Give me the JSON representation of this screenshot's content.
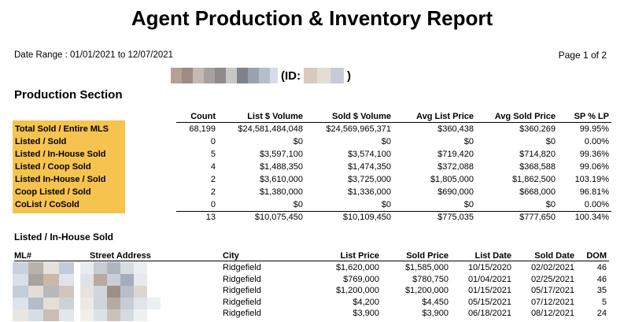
{
  "title": "Agent Production & Inventory Report",
  "date_range": "Date Range :   01/01/2021 to 12/07/2021",
  "page": "Page 1 of 2",
  "agent": {
    "id_label": "(ID:",
    "id_close": ")"
  },
  "production": {
    "section_title": "Production Section",
    "headers": [
      "Count",
      "List $ Volume",
      "Sold $ Volume",
      "Avg List Price",
      "Avg Sold Price",
      "SP % LP"
    ],
    "rows": [
      {
        "label": "Total Sold / Entire MLS",
        "values": [
          "68,199",
          "$24,581,484,048",
          "$24,569,965,371",
          "$360,438",
          "$360,269",
          "99.95%"
        ]
      },
      {
        "label": "Listed / Sold",
        "values": [
          "0",
          "$0",
          "$0",
          "$0",
          "$0",
          "0.00%"
        ]
      },
      {
        "label": "Listed / In-House Sold",
        "values": [
          "5",
          "$3,597,100",
          "$3,574,100",
          "$719,420",
          "$714,820",
          "99.36%"
        ]
      },
      {
        "label": "Listed / Coop Sold",
        "values": [
          "4",
          "$1,488,350",
          "$1,474,350",
          "$372,088",
          "$368,588",
          "99.06%"
        ]
      },
      {
        "label": "Listed In-House / Sold",
        "values": [
          "2",
          "$3,610,000",
          "$3,725,000",
          "$1,805,000",
          "$1,862,500",
          "103.19%"
        ]
      },
      {
        "label": "Coop Listed / Sold",
        "values": [
          "2",
          "$1,380,000",
          "$1,336,000",
          "$690,000",
          "$668,000",
          "96.81%"
        ]
      },
      {
        "label": "CoList / CoSold",
        "values": [
          "0",
          "$0",
          "$0",
          "$0",
          "$0",
          "0.00%"
        ]
      }
    ],
    "totals": [
      "13",
      "$10,075,450",
      "$10,109,450",
      "$775,035",
      "$777,650",
      "100.34%"
    ]
  },
  "listings": {
    "title": "Listed / In-House Sold",
    "headers": [
      "ML#",
      "Street Address",
      "City",
      "List Price",
      "Sold Price",
      "List Date",
      "Sold Date",
      "DOM"
    ],
    "rows": [
      {
        "city": "Ridgefield",
        "list_price": "$1,620,000",
        "sold_price": "$1,585,000",
        "list_date": "10/15/2020",
        "sold_date": "02/02/2021",
        "dom": "46"
      },
      {
        "city": "Ridgefield",
        "list_price": "$769,000",
        "sold_price": "$780,750",
        "list_date": "01/04/2021",
        "sold_date": "02/25/2021",
        "dom": "46"
      },
      {
        "city": "Ridgefield",
        "list_price": "$1,200,000",
        "sold_price": "$1,200,000",
        "list_date": "01/15/2021",
        "sold_date": "05/17/2021",
        "dom": "35"
      },
      {
        "city": "Ridgefield",
        "list_price": "$4,200",
        "sold_price": "$4,450",
        "list_date": "05/15/2021",
        "sold_date": "07/12/2021",
        "dom": "5"
      },
      {
        "city": "Ridgefield",
        "list_price": "$3,900",
        "sold_price": "$3,900",
        "list_date": "06/18/2021",
        "sold_date": "08/12/2021",
        "dom": "24"
      }
    ]
  },
  "colors": {
    "label_highlight": "#f6c34f",
    "redaction_tones": [
      "#b9a79e",
      "#8e7f7b",
      "#c8c1bd",
      "#9c948f",
      "#d8cfc6",
      "#c9d2dc"
    ]
  }
}
